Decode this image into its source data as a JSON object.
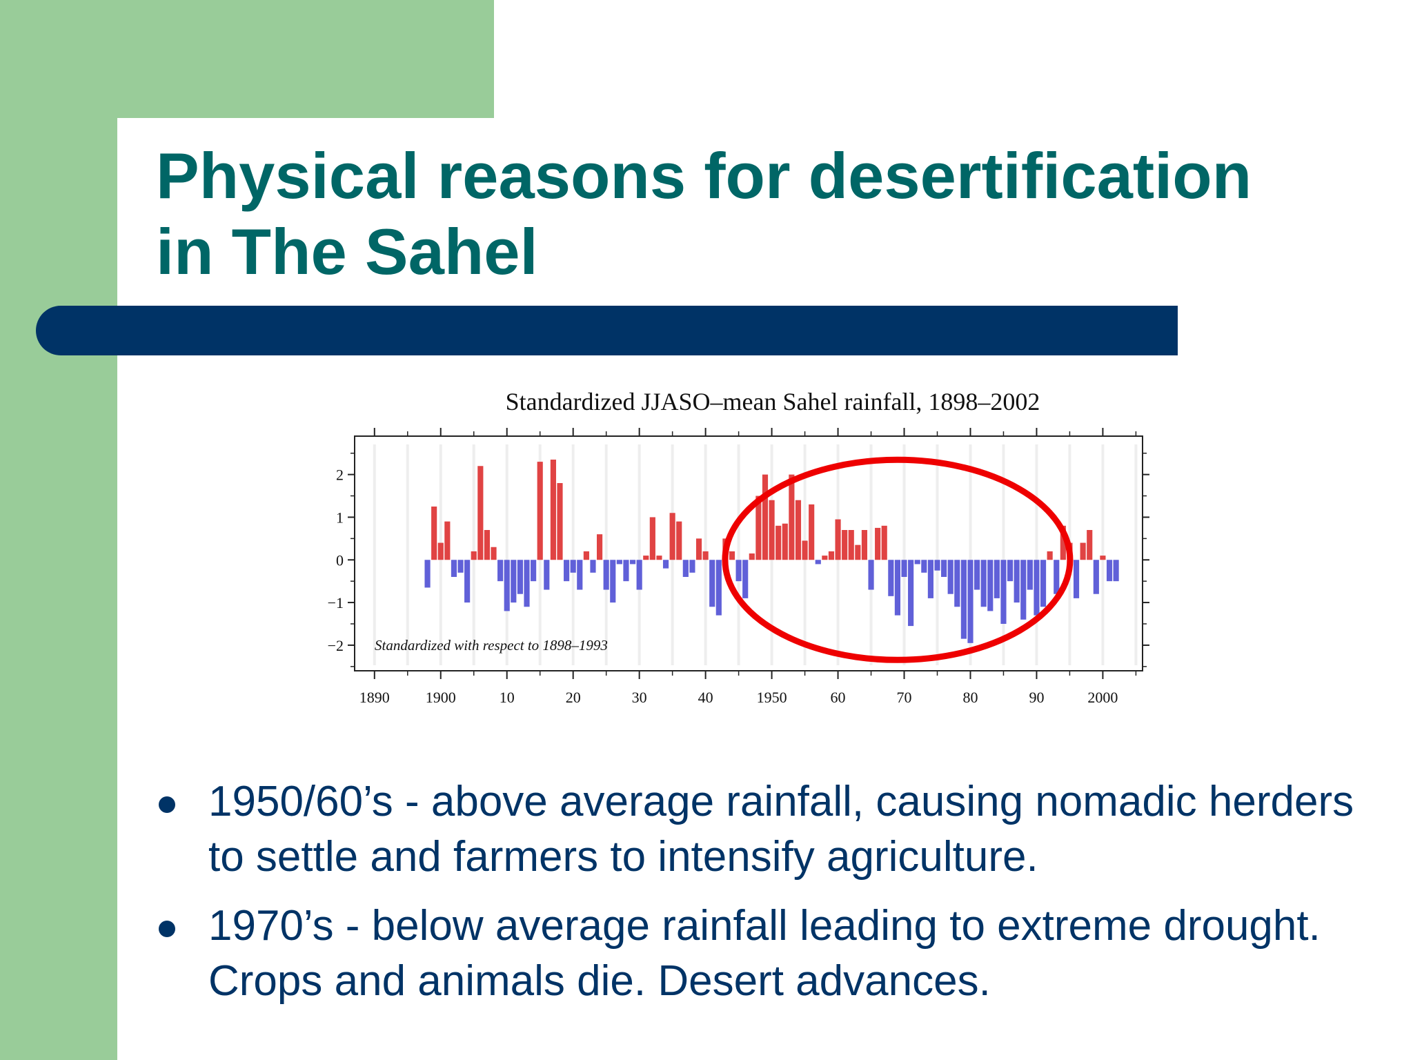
{
  "slide": {
    "title_line1": "Physical reasons for desertification",
    "title_line2": "in The Sahel",
    "bullets": [
      "1950/60’s - above average rainfall, causing nomadic herders to settle and farmers to intensify agriculture.",
      "1970’s - below average rainfall leading to extreme drought. Crops and animals die. Desert advances."
    ],
    "colors": {
      "title": "#006666",
      "bullet_text": "#003366",
      "green_background": "#99cc99",
      "navy_bar": "#003366"
    }
  },
  "chart_data": {
    "type": "bar",
    "title": "Standardized JJASO–mean Sahel rainfall, 1898–2002",
    "annotation": "Standardized with respect to 1898–1993",
    "x_tick_labels": [
      "1890",
      "1900",
      "10",
      "20",
      "30",
      "40",
      "1950",
      "60",
      "70",
      "80",
      "90",
      "2000"
    ],
    "x_tick_years": [
      1890,
      1900,
      1910,
      1920,
      1930,
      1940,
      1950,
      1960,
      1970,
      1980,
      1990,
      2000
    ],
    "y_tick_labels": [
      "2",
      "1",
      "0",
      "−1",
      "−2"
    ],
    "y_tick_values": [
      2,
      1,
      0,
      -1,
      -2
    ],
    "xlim": [
      1887,
      2006
    ],
    "ylim": [
      -2.6,
      2.9
    ],
    "positive_color": "#e04343",
    "negative_color": "#6060d8",
    "highlight_ellipse": {
      "center_year": 1969,
      "center_value": 0,
      "color": "#ee0000"
    },
    "years": [
      1898,
      1899,
      1900,
      1901,
      1902,
      1903,
      1904,
      1905,
      1906,
      1907,
      1908,
      1909,
      1910,
      1911,
      1912,
      1913,
      1914,
      1915,
      1916,
      1917,
      1918,
      1919,
      1920,
      1921,
      1922,
      1923,
      1924,
      1925,
      1926,
      1927,
      1928,
      1929,
      1930,
      1931,
      1932,
      1933,
      1934,
      1935,
      1936,
      1937,
      1938,
      1939,
      1940,
      1941,
      1942,
      1943,
      1944,
      1945,
      1946,
      1947,
      1948,
      1949,
      1950,
      1951,
      1952,
      1953,
      1954,
      1955,
      1956,
      1957,
      1958,
      1959,
      1960,
      1961,
      1962,
      1963,
      1964,
      1965,
      1966,
      1967,
      1968,
      1969,
      1970,
      1971,
      1972,
      1973,
      1974,
      1975,
      1976,
      1977,
      1978,
      1979,
      1980,
      1981,
      1982,
      1983,
      1984,
      1985,
      1986,
      1987,
      1988,
      1989,
      1990,
      1991,
      1992,
      1993,
      1994,
      1995,
      1996,
      1997,
      1998,
      1999,
      2000,
      2001,
      2002
    ],
    "values": [
      -0.65,
      1.25,
      0.4,
      0.9,
      -0.4,
      -0.3,
      -1.0,
      0.2,
      2.2,
      0.7,
      0.3,
      -0.5,
      -1.2,
      -1.0,
      -0.8,
      -1.1,
      -0.5,
      2.3,
      -0.7,
      2.35,
      1.8,
      -0.5,
      -0.3,
      -0.7,
      0.2,
      -0.3,
      0.6,
      -0.7,
      -1.0,
      -0.1,
      -0.5,
      -0.1,
      -0.7,
      0.1,
      1.0,
      0.1,
      -0.2,
      1.1,
      0.9,
      -0.4,
      -0.3,
      0.5,
      0.2,
      -1.1,
      -1.3,
      0.5,
      0.2,
      -0.5,
      -0.9,
      0.15,
      1.5,
      2.0,
      1.4,
      0.8,
      0.85,
      2.0,
      1.4,
      0.45,
      1.3,
      -0.1,
      0.1,
      0.2,
      0.95,
      0.7,
      0.7,
      0.35,
      0.7,
      -0.7,
      0.75,
      0.8,
      -0.85,
      -1.3,
      -0.4,
      -1.55,
      -0.1,
      -0.3,
      -0.9,
      -0.25,
      -0.4,
      -0.8,
      -1.1,
      -1.85,
      -1.95,
      -0.7,
      -1.1,
      -1.2,
      -0.9,
      -1.5,
      -0.5,
      -1.0,
      -1.4,
      -0.7,
      -1.3,
      -1.1,
      0.2,
      -0.8,
      0.8,
      0.4,
      -0.9,
      0.4,
      0.7,
      -0.8,
      0.1,
      -0.5,
      -0.5
    ]
  }
}
